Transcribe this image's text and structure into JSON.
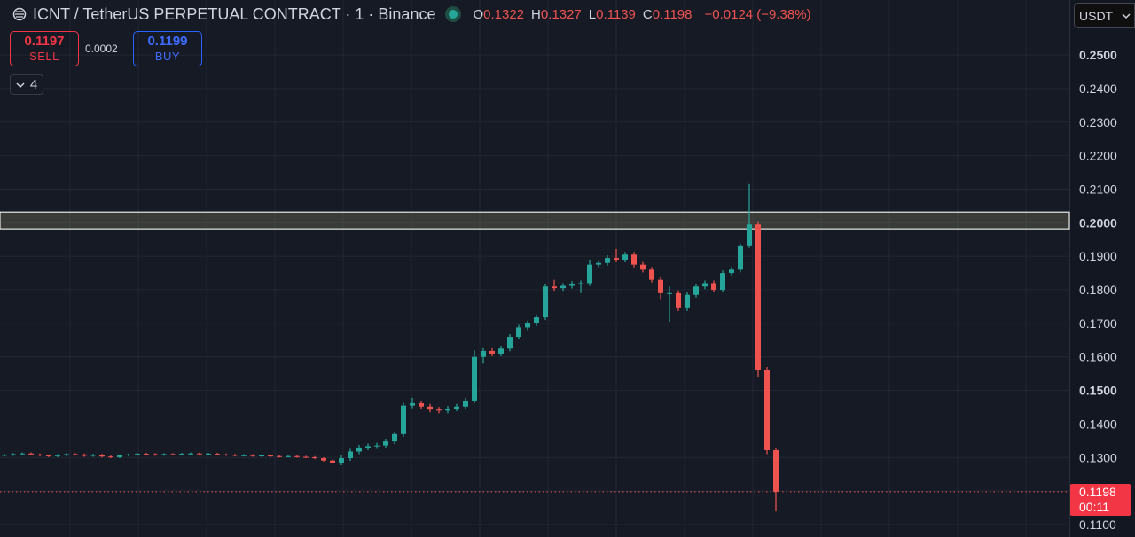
{
  "chart_data": {
    "type": "candlestick",
    "title": "ICNT / TetherUS PERPETUAL CONTRACT · 1 · Binance",
    "ohlc": [
      {
        "label": "O",
        "value": 0.1322
      },
      {
        "label": "H",
        "value": 0.1327
      },
      {
        "label": "L",
        "value": 0.1139
      },
      {
        "label": "C",
        "value": 0.1198
      }
    ],
    "change": "−0.0124 (−9.38%)",
    "sell": {
      "price": 0.1197,
      "label": "SELL"
    },
    "spread": 0.0002,
    "buy": {
      "price": 0.1199,
      "label": "BUY"
    },
    "indicators_count": 4,
    "currency": "USDT",
    "current_price": 0.1198,
    "countdown": "00:11",
    "up_color": "#26a69a",
    "down_color": "#ef5350",
    "zone": [
      0.1982,
      0.2032
    ],
    "ylim": [
      0.1063,
      0.2664
    ],
    "yticks": [
      {
        "value": 0.11,
        "label": "0.1100"
      },
      {
        "value": 0.12,
        "label": "0.1200"
      },
      {
        "value": 0.13,
        "label": "0.1300"
      },
      {
        "value": 0.14,
        "label": "0.1400"
      },
      {
        "value": 0.15,
        "label": "0.1500"
      },
      {
        "value": 0.16,
        "label": "0.1600"
      },
      {
        "value": 0.17,
        "label": "0.1700"
      },
      {
        "value": 0.18,
        "label": "0.1800"
      },
      {
        "value": 0.19,
        "label": "0.1900"
      },
      {
        "value": 0.2,
        "label": "0.2000"
      },
      {
        "value": 0.21,
        "label": "0.2100"
      },
      {
        "value": 0.22,
        "label": "0.2200"
      },
      {
        "value": 0.23,
        "label": "0.2300"
      },
      {
        "value": 0.24,
        "label": "0.2400"
      },
      {
        "value": 0.25,
        "label": "0.2500"
      }
    ],
    "grid": true,
    "open": [
      0.1306,
      0.1308,
      0.131,
      0.1312,
      0.1309,
      0.1306,
      0.1304,
      0.1307,
      0.131,
      0.1309,
      0.1305,
      0.1308,
      0.1303,
      0.1301,
      0.1306,
      0.1309,
      0.1311,
      0.131,
      0.1308,
      0.131,
      0.1309,
      0.1311,
      0.1312,
      0.131,
      0.1311,
      0.1309,
      0.1308,
      0.1306,
      0.1307,
      0.1305,
      0.1306,
      0.1304,
      0.1303,
      0.1304,
      0.1302,
      0.1301,
      0.1298,
      0.1291,
      0.1285,
      0.1298,
      0.1318,
      0.133,
      0.1334,
      0.1336,
      0.1348,
      0.137,
      0.1455,
      0.1462,
      0.1452,
      0.1443,
      0.144,
      0.1446,
      0.1452,
      0.147,
      0.16,
      0.1618,
      0.161,
      0.1625,
      0.166,
      0.1688,
      0.17,
      0.1718,
      0.181,
      0.1805,
      0.1812,
      0.1818,
      0.182,
      0.1875,
      0.188,
      0.1895,
      0.189,
      0.1905,
      0.1875,
      0.186,
      0.183,
      0.179,
      0.179,
      0.1745,
      0.1785,
      0.181,
      0.182,
      0.18,
      0.185,
      0.186,
      0.193,
      0.1995,
      0.156,
      0.1322
    ],
    "high": [
      0.1311,
      0.1313,
      0.1315,
      0.1315,
      0.1312,
      0.1309,
      0.131,
      0.1313,
      0.1313,
      0.1312,
      0.1311,
      0.1311,
      0.1306,
      0.1309,
      0.1312,
      0.1314,
      0.1314,
      0.1313,
      0.1313,
      0.1313,
      0.1314,
      0.1315,
      0.1315,
      0.1314,
      0.1314,
      0.1312,
      0.1311,
      0.131,
      0.131,
      0.1309,
      0.1309,
      0.1307,
      0.1307,
      0.1307,
      0.1305,
      0.1304,
      0.1301,
      0.1294,
      0.1306,
      0.1326,
      0.1338,
      0.1342,
      0.1344,
      0.1356,
      0.1378,
      0.1463,
      0.1478,
      0.147,
      0.146,
      0.1451,
      0.1454,
      0.146,
      0.1478,
      0.162,
      0.1626,
      0.1626,
      0.1633,
      0.1668,
      0.1696,
      0.1708,
      0.1726,
      0.1818,
      0.183,
      0.182,
      0.1826,
      0.1828,
      0.189,
      0.1888,
      0.1903,
      0.1922,
      0.1913,
      0.1913,
      0.1883,
      0.1868,
      0.1838,
      0.181,
      0.1798,
      0.1793,
      0.1818,
      0.1828,
      0.1828,
      0.1858,
      0.1868,
      0.1938,
      0.2115,
      0.2005,
      0.157,
      0.1327
    ],
    "low": [
      0.1303,
      0.1305,
      0.1307,
      0.1306,
      0.1303,
      0.1301,
      0.1301,
      0.1304,
      0.1306,
      0.1302,
      0.1302,
      0.13,
      0.1298,
      0.1298,
      0.1303,
      0.1306,
      0.1307,
      0.1305,
      0.1305,
      0.1306,
      0.1306,
      0.1308,
      0.1307,
      0.1307,
      0.1306,
      0.1305,
      0.1303,
      0.1303,
      0.1302,
      0.1302,
      0.1301,
      0.13,
      0.13,
      0.1299,
      0.1298,
      0.1295,
      0.1288,
      0.1282,
      0.1277,
      0.129,
      0.131,
      0.1322,
      0.1326,
      0.1328,
      0.134,
      0.1362,
      0.1447,
      0.1444,
      0.1435,
      0.1432,
      0.1432,
      0.1438,
      0.1444,
      0.1462,
      0.158,
      0.1602,
      0.1602,
      0.1617,
      0.1652,
      0.168,
      0.1692,
      0.171,
      0.1797,
      0.1797,
      0.1804,
      0.179,
      0.1812,
      0.1867,
      0.1872,
      0.1882,
      0.1882,
      0.1867,
      0.1852,
      0.1822,
      0.1772,
      0.1705,
      0.1737,
      0.1737,
      0.1777,
      0.1802,
      0.1792,
      0.1792,
      0.1842,
      0.1852,
      0.1925,
      0.154,
      0.131,
      0.1139
    ],
    "close": [
      0.1308,
      0.131,
      0.1312,
      0.1309,
      0.1306,
      0.1304,
      0.1307,
      0.131,
      0.1309,
      0.1305,
      0.1308,
      0.1303,
      0.1301,
      0.1306,
      0.1309,
      0.1311,
      0.131,
      0.1308,
      0.131,
      0.1309,
      0.1311,
      0.1312,
      0.131,
      0.1311,
      0.1309,
      0.1308,
      0.1306,
      0.1307,
      0.1305,
      0.1306,
      0.1304,
      0.1303,
      0.1304,
      0.1302,
      0.1301,
      0.1298,
      0.1291,
      0.1285,
      0.1298,
      0.1318,
      0.133,
      0.1334,
      0.1336,
      0.1348,
      0.137,
      0.1455,
      0.1462,
      0.1452,
      0.1443,
      0.144,
      0.1446,
      0.1452,
      0.147,
      0.16,
      0.1618,
      0.161,
      0.1625,
      0.166,
      0.1688,
      0.17,
      0.1718,
      0.181,
      0.1805,
      0.1812,
      0.1818,
      0.182,
      0.1875,
      0.188,
      0.1895,
      0.189,
      0.1905,
      0.1875,
      0.186,
      0.183,
      0.179,
      0.179,
      0.1745,
      0.1785,
      0.181,
      0.182,
      0.18,
      0.185,
      0.186,
      0.193,
      0.1995,
      0.156,
      0.1322,
      0.1198
    ]
  }
}
